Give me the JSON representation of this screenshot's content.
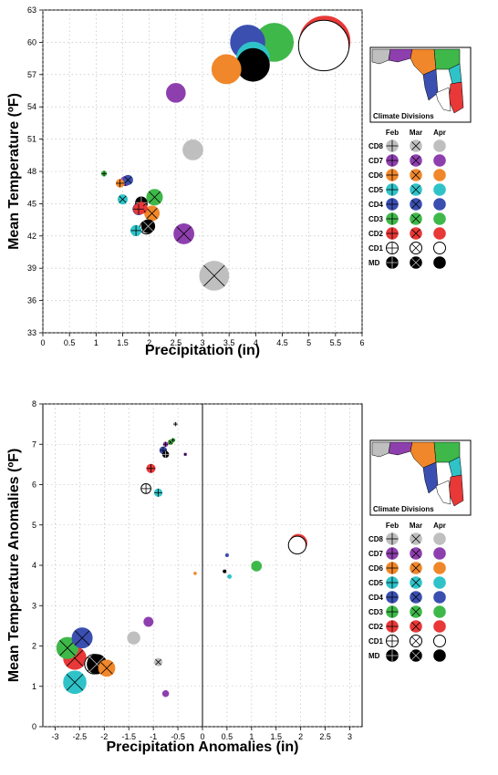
{
  "legend": {
    "columns": [
      "Feb",
      "Mar",
      "Apr"
    ],
    "rows": [
      {
        "label": "CD8",
        "color": "#bfbfbf"
      },
      {
        "label": "CD7",
        "color": "#8e3fae"
      },
      {
        "label": "CD6",
        "color": "#f0872a"
      },
      {
        "label": "CD5",
        "color": "#2fc3c8"
      },
      {
        "label": "CD4",
        "color": "#3a4fb0"
      },
      {
        "label": "CD3",
        "color": "#3fb84a"
      },
      {
        "label": "CD2",
        "color": "#e83838"
      },
      {
        "label": "CD1",
        "color": "#ffffff"
      },
      {
        "label": "MD",
        "color": "#000000"
      }
    ],
    "map_caption": "Climate Divisions"
  },
  "chart_data": [
    {
      "type": "scatter",
      "xlabel": "Precipitation (in)",
      "ylabel": "Mean Temperature (ºF)",
      "xlim": [
        0,
        6
      ],
      "ylim": [
        33,
        63
      ],
      "xticks": [
        "0",
        "0.5",
        "1",
        "1.5",
        "2",
        "2.5",
        "3",
        "3.5",
        "4",
        "4.5",
        "5",
        "5.5",
        "6"
      ],
      "yticks": [
        "33",
        "36",
        "39",
        "42",
        "45",
        "48",
        "51",
        "54",
        "57",
        "60",
        "63"
      ],
      "points": [
        {
          "div": "CD8",
          "month": "Feb",
          "x": 1.55,
          "y": 47.1,
          "size": 0.18
        },
        {
          "div": "CD7",
          "month": "Feb",
          "x": 1.55,
          "y": 47.1,
          "size": 0.18
        },
        {
          "div": "CD6",
          "month": "Feb",
          "x": 1.45,
          "y": 46.9,
          "size": 0.15
        },
        {
          "div": "CD5",
          "month": "Feb",
          "x": 1.75,
          "y": 42.5,
          "size": 0.2
        },
        {
          "div": "CD4",
          "month": "Feb",
          "x": 1.8,
          "y": 44.5,
          "size": 0.22
        },
        {
          "div": "CD3",
          "month": "Feb",
          "x": 1.15,
          "y": 47.8,
          "size": 0.1
        },
        {
          "div": "CD2",
          "month": "Feb",
          "x": 1.8,
          "y": 44.5,
          "size": 0.2
        },
        {
          "div": "CD1",
          "month": "Feb",
          "x": 1.85,
          "y": 45.0,
          "size": 0.22
        },
        {
          "div": "MD",
          "month": "Feb",
          "x": 1.85,
          "y": 45.1,
          "size": 0.22
        },
        {
          "div": "CD8",
          "month": "Mar",
          "x": 3.22,
          "y": 38.3,
          "size": 0.55
        },
        {
          "div": "CD7",
          "month": "Mar",
          "x": 2.65,
          "y": 42.2,
          "size": 0.38
        },
        {
          "div": "CD6",
          "month": "Mar",
          "x": 2.05,
          "y": 44.1,
          "size": 0.28
        },
        {
          "div": "CD5",
          "month": "Mar",
          "x": 1.5,
          "y": 45.4,
          "size": 0.18
        },
        {
          "div": "CD4",
          "month": "Mar",
          "x": 1.6,
          "y": 47.2,
          "size": 0.18
        },
        {
          "div": "CD3",
          "month": "Mar",
          "x": 2.1,
          "y": 45.6,
          "size": 0.3
        },
        {
          "div": "CD2",
          "month": "Mar",
          "x": 1.85,
          "y": 44.6,
          "size": 0.22
        },
        {
          "div": "CD1",
          "month": "Mar",
          "x": 1.95,
          "y": 42.8,
          "size": 0.25
        },
        {
          "div": "MD",
          "month": "Mar",
          "x": 1.98,
          "y": 42.9,
          "size": 0.25
        },
        {
          "div": "CD8",
          "month": "Apr",
          "x": 2.82,
          "y": 50.0,
          "size": 0.38
        },
        {
          "div": "CD7",
          "month": "Apr",
          "x": 2.5,
          "y": 55.3,
          "size": 0.36
        },
        {
          "div": "CD6",
          "month": "Apr",
          "x": 3.45,
          "y": 57.5,
          "size": 0.55
        },
        {
          "div": "CD5",
          "month": "Apr",
          "x": 3.95,
          "y": 58.5,
          "size": 0.62
        },
        {
          "div": "CD4",
          "month": "Apr",
          "x": 3.85,
          "y": 60.0,
          "size": 0.65
        },
        {
          "div": "CD3",
          "month": "Apr",
          "x": 4.35,
          "y": 60.0,
          "size": 0.72
        },
        {
          "div": "CD2",
          "month": "Apr",
          "x": 5.3,
          "y": 60.1,
          "size": 0.95
        },
        {
          "div": "CD1",
          "month": "Apr",
          "x": 5.28,
          "y": 59.7,
          "size": 0.95
        },
        {
          "div": "MD",
          "month": "Apr",
          "x": 3.95,
          "y": 57.9,
          "size": 0.62
        }
      ]
    },
    {
      "type": "scatter",
      "xlabel": "Precipitation Anomalies (in)",
      "ylabel": "Mean Temperature Anomalies (ºF)",
      "xlim": [
        -3.25,
        3.25
      ],
      "ylim": [
        0,
        8
      ],
      "xticks": [
        "-3",
        "-2.5",
        "-2",
        "-1.5",
        "-1",
        "-0.5",
        "0",
        "0.5",
        "1",
        "1.5",
        "2",
        "2.5",
        "3"
      ],
      "yticks": [
        "0",
        "1",
        "2",
        "3",
        "4",
        "5",
        "6",
        "7",
        "8"
      ],
      "points": [
        {
          "div": "CD8",
          "month": "Feb",
          "x": -0.55,
          "y": 7.5,
          "size": 0.1
        },
        {
          "div": "CD7",
          "month": "Feb",
          "x": -0.75,
          "y": 7.0,
          "size": 0.12
        },
        {
          "div": "CD6",
          "month": "Feb",
          "x": -0.65,
          "y": 7.05,
          "size": 0.13
        },
        {
          "div": "CD5",
          "month": "Feb",
          "x": -0.9,
          "y": 5.8,
          "size": 0.2
        },
        {
          "div": "CD4",
          "month": "Feb",
          "x": -0.8,
          "y": 6.85,
          "size": 0.18
        },
        {
          "div": "CD3",
          "month": "Feb",
          "x": -0.6,
          "y": 7.1,
          "size": 0.1
        },
        {
          "div": "CD2",
          "month": "Feb",
          "x": -1.05,
          "y": 6.4,
          "size": 0.22
        },
        {
          "div": "CD1",
          "month": "Feb",
          "x": -1.15,
          "y": 5.9,
          "size": 0.25
        },
        {
          "div": "MD",
          "month": "Feb",
          "x": -0.75,
          "y": 6.75,
          "size": 0.16
        },
        {
          "div": "CD8",
          "month": "Mar",
          "x": -0.9,
          "y": 1.6,
          "size": 0.2
        },
        {
          "div": "CD7",
          "month": "Mar",
          "x": -0.35,
          "y": 6.75,
          "size": 0.06
        },
        {
          "div": "CD6",
          "month": "Mar",
          "x": -1.95,
          "y": 1.45,
          "size": 0.42
        },
        {
          "div": "CD5",
          "month": "Mar",
          "x": -2.6,
          "y": 1.1,
          "size": 0.58
        },
        {
          "div": "CD4",
          "month": "Mar",
          "x": -2.45,
          "y": 2.2,
          "size": 0.52
        },
        {
          "div": "CD3",
          "month": "Mar",
          "x": -0.65,
          "y": 7.05,
          "size": 0.12
        },
        {
          "div": "CD2",
          "month": "Mar",
          "x": -2.6,
          "y": 1.7,
          "size": 0.58
        },
        {
          "div": "CD1",
          "month": "Mar",
          "x": -2.2,
          "y": 1.55,
          "size": 0.5
        },
        {
          "div": "MD",
          "month": "Mar",
          "x": -2.15,
          "y": 1.55,
          "size": 0.5
        },
        {
          "div": "CD8",
          "month": "Apr",
          "x": -1.4,
          "y": 2.2,
          "size": 0.32
        },
        {
          "div": "CD7",
          "month": "Apr",
          "x": -1.1,
          "y": 2.6,
          "size": 0.24
        },
        {
          "div": "CD7",
          "month": "Apr",
          "x": -0.75,
          "y": 0.82,
          "size": 0.16
        },
        {
          "div": "CD6",
          "month": "Apr",
          "x": -0.15,
          "y": 3.8,
          "size": 0.03
        },
        {
          "div": "CD5",
          "month": "Apr",
          "x": 0.55,
          "y": 3.72,
          "size": 0.1
        },
        {
          "div": "CD4",
          "month": "Apr",
          "x": 0.5,
          "y": 4.25,
          "size": 0.08
        },
        {
          "div": "CD3",
          "month": "Apr",
          "x": 1.1,
          "y": 3.98,
          "size": 0.26
        },
        {
          "div": "CD2",
          "month": "Apr",
          "x": 1.95,
          "y": 4.55,
          "size": 0.45
        },
        {
          "div": "CD1",
          "month": "Apr",
          "x": 1.93,
          "y": 4.5,
          "size": 0.45
        },
        {
          "div": "MD",
          "month": "Apr",
          "x": 0.45,
          "y": 3.85,
          "size": 0.08
        },
        {
          "div": "CD3",
          "month": "Mar",
          "x": -2.75,
          "y": 1.95,
          "size": 0.55
        }
      ]
    }
  ]
}
